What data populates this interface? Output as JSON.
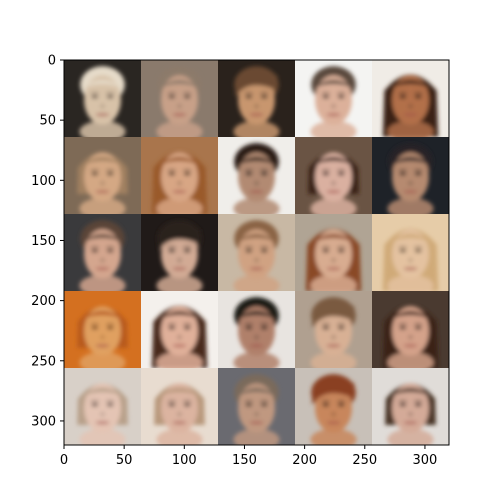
{
  "chart_data": {
    "type": "heatmap",
    "title": "",
    "xlabel": "",
    "ylabel": "",
    "xlim": [
      0,
      320
    ],
    "ylim": [
      320,
      0
    ],
    "y_inverted": true,
    "grid": false,
    "image_grid": {
      "rows": 5,
      "cols": 5,
      "cell_size_data_units": 64
    },
    "xticks": [
      0,
      50,
      100,
      150,
      200,
      250,
      300
    ],
    "yticks": [
      0,
      50,
      100,
      150,
      200,
      250,
      300
    ],
    "xtick_labels": [
      "0",
      "50",
      "100",
      "150",
      "200",
      "250",
      "300"
    ],
    "ytick_labels": [
      "0",
      "50",
      "100",
      "150",
      "200",
      "250",
      "300"
    ],
    "cells": [
      [
        {
          "bg": "#2a2622",
          "skin": "#d8c2a8",
          "hair": "#e6dbc9",
          "hairStyle": "short",
          "eyes": "#5a4a40"
        },
        {
          "bg": "#8a7a6c",
          "skin": "#c8a088",
          "hair": "#8c7a6a",
          "hairStyle": "short",
          "eyes": "#4a3a32"
        },
        {
          "bg": "#2a221c",
          "skin": "#c8966e",
          "hair": "#6a4a30",
          "hairStyle": "bangs",
          "eyes": "#3a2a20"
        },
        {
          "bg": "#f4f4f2",
          "skin": "#dcb09a",
          "hair": "#5a4a3e",
          "hairStyle": "short",
          "eyes": "#3a2c24"
        },
        {
          "bg": "#f0ece6",
          "skin": "#b2704a",
          "hair": "#3a2216",
          "hairStyle": "long",
          "eyes": "#2a1a12"
        }
      ],
      [
        {
          "bg": "#7e6a56",
          "skin": "#d4a884",
          "hair": "#a08060",
          "hairStyle": "medium",
          "eyes": "#4a3a2c"
        },
        {
          "bg": "#a9754c",
          "skin": "#d8a684",
          "hair": "#9a5a2a",
          "hairStyle": "long",
          "eyes": "#3a2618"
        },
        {
          "bg": "#f0eeea",
          "skin": "#b28a72",
          "hair": "#2a1e18",
          "hairStyle": "short",
          "eyes": "#1e1612"
        },
        {
          "bg": "#6a5444",
          "skin": "#dab0a0",
          "hair": "#3a2418",
          "hairStyle": "medium",
          "eyes": "#2a1a12"
        },
        {
          "bg": "#1e2228",
          "skin": "#b68a70",
          "hair": "#282228",
          "hairStyle": "short",
          "eyes": "#1e1612"
        }
      ],
      [
        {
          "bg": "#3a3a3c",
          "skin": "#d4a68e",
          "hair": "#5a4438",
          "hairStyle": "short",
          "eyes": "#3a2a20"
        },
        {
          "bg": "#201a18",
          "skin": "#d2aa94",
          "hair": "#2a201a",
          "hairStyle": "bangs",
          "eyes": "#1e1612"
        },
        {
          "bg": "#c8b8a4",
          "skin": "#d0a282",
          "hair": "#8a6444",
          "hairStyle": "short",
          "eyes": "#3a2a1e"
        },
        {
          "bg": "#b0a494",
          "skin": "#d8ac90",
          "hair": "#8a4a28",
          "hairStyle": "long",
          "eyes": "#3a2418"
        },
        {
          "bg": "#e6cca8",
          "skin": "#e4c2a0",
          "hair": "#d0aa78",
          "hairStyle": "long",
          "eyes": "#5a4432"
        }
      ],
      [
        {
          "bg": "#d47020",
          "skin": "#e0a060",
          "hair": "#b85a1c",
          "hairStyle": "medium",
          "eyes": "#6a3a18"
        },
        {
          "bg": "#f4f0ec",
          "skin": "#e0b09a",
          "hair": "#4a2a1c",
          "hairStyle": "long",
          "eyes": "#2a1a12"
        },
        {
          "bg": "#e8e4e0",
          "skin": "#b0806a",
          "hair": "#1e1a18",
          "hairStyle": "short",
          "eyes": "#1a1410"
        },
        {
          "bg": "#b0a090",
          "skin": "#d8b094",
          "hair": "#7a5a40",
          "hairStyle": "bangs",
          "eyes": "#3a2a1e"
        },
        {
          "bg": "#4a3a30",
          "skin": "#d4a28a",
          "hair": "#3a2216",
          "hairStyle": "long",
          "eyes": "#2a1a12"
        }
      ],
      [
        {
          "bg": "#d8d0c8",
          "skin": "#e4c4b4",
          "hair": "#b8a08a",
          "hairStyle": "medium",
          "eyes": "#5a4a42"
        },
        {
          "bg": "#e8dcd0",
          "skin": "#dcb4a0",
          "hair": "#b8987c",
          "hairStyle": "medium",
          "eyes": "#4a3a30"
        },
        {
          "bg": "#6a6a70",
          "skin": "#c09880",
          "hair": "#7a6a5c",
          "hairStyle": "short",
          "eyes": "#3a2e26"
        },
        {
          "bg": "#c8c0b8",
          "skin": "#c8865c",
          "hair": "#8a4020",
          "hairStyle": "bangs",
          "eyes": "#3a2014"
        },
        {
          "bg": "#e0dcd8",
          "skin": "#d4aa98",
          "hair": "#4a3428",
          "hairStyle": "medium",
          "eyes": "#2a1a14"
        }
      ]
    ]
  }
}
